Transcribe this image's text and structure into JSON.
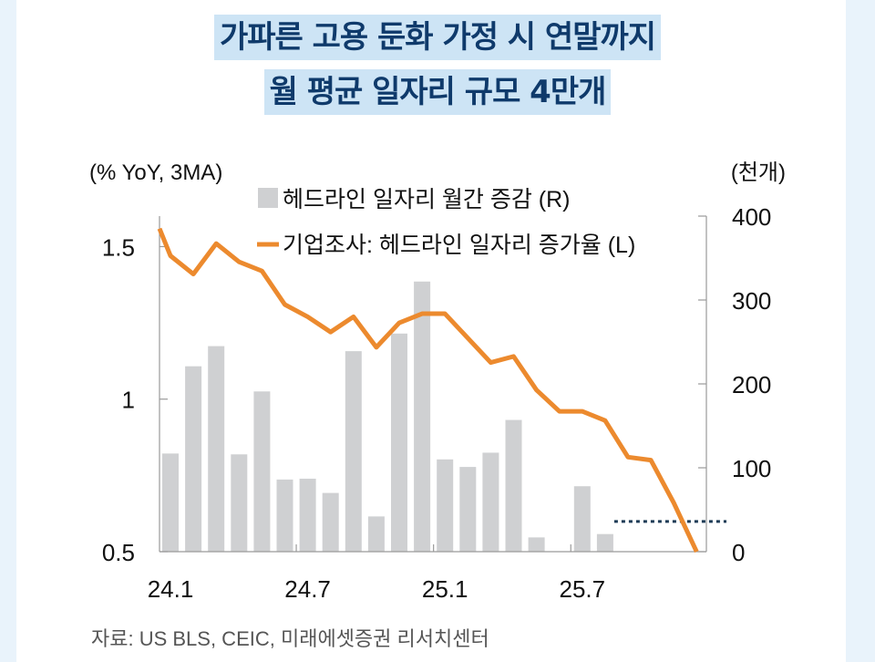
{
  "title_lines": [
    "가파른 고용 둔화 가정 시 연말까지",
    "월 평균 일자리 규모 4만개"
  ],
  "source": "자료: US BLS, CEIC, 미래에셋증권 리서치센터",
  "colors": {
    "bar": "#cfd0d2",
    "line": "#ec8a2e",
    "dotted": "#1c3a55",
    "title_text": "#0f3a6b",
    "title_bg": "#cde4f5"
  },
  "chart_data": {
    "type": "bar+line",
    "left_axis": {
      "label": "(% YoY, 3MA)",
      "range": [
        0.5,
        1.6
      ],
      "ticks": [
        0.5,
        1,
        1.5
      ],
      "tick_labels": [
        "0.5",
        "1",
        "1.5"
      ]
    },
    "right_axis": {
      "label": "(천개)",
      "range": [
        0,
        400
      ],
      "ticks": [
        0,
        100,
        200,
        300,
        400
      ],
      "tick_labels": [
        "0",
        "100",
        "200",
        "300",
        "400"
      ]
    },
    "x_tick_labels": [
      "24.1",
      "24.7",
      "25.1",
      "25.7"
    ],
    "months": [
      "24.1",
      "24.2",
      "24.3",
      "24.4",
      "24.5",
      "24.6",
      "24.7",
      "24.8",
      "24.9",
      "24.10",
      "24.11",
      "24.12",
      "25.1",
      "25.2",
      "25.3",
      "25.4",
      "25.5",
      "25.6",
      "25.7",
      "25.8",
      "25.9",
      "25.10",
      "25.11",
      "25.12"
    ],
    "legend_placement": "top",
    "series": [
      {
        "name": "헤드라인 일자리 월간 증감 (R)",
        "type": "bar",
        "axis": "right",
        "values": [
          117,
          221,
          245,
          116,
          191,
          86,
          87,
          70,
          239,
          42,
          260,
          322,
          110,
          101,
          118,
          157,
          17,
          0,
          78,
          21
        ]
      },
      {
        "name": "기업조사: 헤드라인 일자리 증가율 (L)",
        "type": "line",
        "axis": "left",
        "values": [
          1.47,
          1.41,
          1.51,
          1.45,
          1.42,
          1.31,
          1.27,
          1.22,
          1.27,
          1.17,
          1.25,
          1.28,
          1.28,
          1.2,
          1.12,
          1.14,
          1.03,
          0.96,
          0.96,
          0.93,
          0.81,
          0.8,
          0.66,
          0.5
        ]
      }
    ],
    "reference_line": {
      "style": "dotted",
      "axis": "right",
      "value": 36,
      "from_month": "25.8"
    },
    "grid": false
  }
}
